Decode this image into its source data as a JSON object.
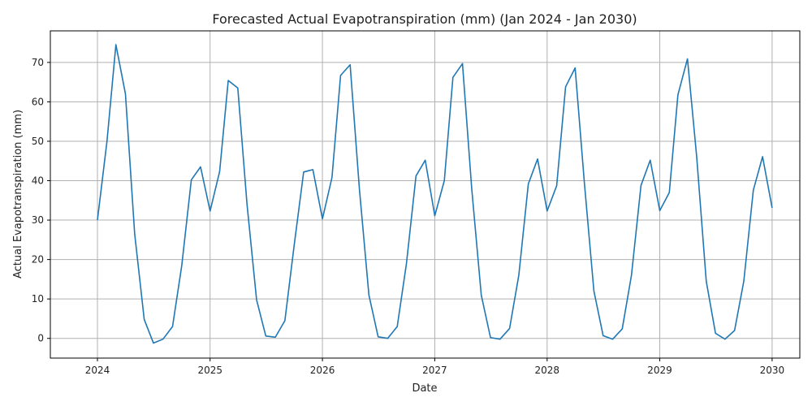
{
  "chart_data": {
    "type": "line",
    "title": "Forecasted Actual Evapotranspiration (mm) (Jan 2024 - Jan 2030)",
    "xlabel": "Date",
    "ylabel": "Actual Evapotranspiration (mm)",
    "xlim": [
      "2023-08-01",
      "2030-04-01"
    ],
    "ylim": [
      -5,
      78
    ],
    "x_ticks": [
      "2024",
      "2025",
      "2026",
      "2027",
      "2028",
      "2029",
      "2030"
    ],
    "y_ticks": [
      0,
      10,
      20,
      30,
      40,
      50,
      60,
      70
    ],
    "grid": true,
    "x": [
      "2024-01-01",
      "2024-02-01",
      "2024-03-01",
      "2024-04-01",
      "2024-05-01",
      "2024-06-01",
      "2024-07-01",
      "2024-08-01",
      "2024-09-01",
      "2024-10-01",
      "2024-11-01",
      "2024-12-01",
      "2025-01-01",
      "2025-02-01",
      "2025-03-01",
      "2025-04-01",
      "2025-05-01",
      "2025-06-01",
      "2025-07-01",
      "2025-08-01",
      "2025-09-01",
      "2025-10-01",
      "2025-11-01",
      "2025-12-01",
      "2026-01-01",
      "2026-02-01",
      "2026-03-01",
      "2026-04-01",
      "2026-05-01",
      "2026-06-01",
      "2026-07-01",
      "2026-08-01",
      "2026-09-01",
      "2026-10-01",
      "2026-11-01",
      "2026-12-01",
      "2027-01-01",
      "2027-02-01",
      "2027-03-01",
      "2027-04-01",
      "2027-05-01",
      "2027-06-01",
      "2027-07-01",
      "2027-08-01",
      "2027-09-01",
      "2027-10-01",
      "2027-11-01",
      "2027-12-01",
      "2028-01-01",
      "2028-02-01",
      "2028-03-01",
      "2028-04-01",
      "2028-05-01",
      "2028-06-01",
      "2028-07-01",
      "2028-08-01",
      "2028-09-01",
      "2028-10-01",
      "2028-11-01",
      "2028-12-01",
      "2029-01-01",
      "2029-02-01",
      "2029-03-01",
      "2029-04-01",
      "2029-05-01",
      "2029-06-01",
      "2029-07-01",
      "2029-08-01",
      "2029-09-01",
      "2029-10-01",
      "2029-11-01",
      "2029-12-01",
      "2030-01-01"
    ],
    "series": [
      {
        "values": [
          30.0,
          50.0,
          74.5,
          62.0,
          26.5,
          4.8,
          -1.2,
          -0.2,
          3.0,
          18.5,
          40.2,
          43.5,
          32.3,
          42.3,
          65.4,
          63.5,
          34.0,
          9.8,
          0.6,
          0.3,
          4.5,
          23.5,
          42.2,
          42.8,
          30.3,
          40.8,
          66.7,
          69.4,
          38.0,
          11.0,
          0.4,
          0.0,
          3.0,
          19.0,
          41.2,
          45.2,
          31.1,
          40.0,
          66.2,
          69.7,
          38.0,
          11.0,
          0.2,
          -0.2,
          2.5,
          16.0,
          39.2,
          45.5,
          32.3,
          38.7,
          63.8,
          68.6,
          39.5,
          12.0,
          0.7,
          -0.2,
          2.4,
          16.0,
          38.8,
          45.2,
          32.4,
          37.0,
          61.8,
          70.9,
          46.0,
          14.5,
          1.3,
          -0.2,
          2.0,
          14.5,
          37.6,
          46.1,
          33.1
        ],
        "color": "#1f77b4"
      }
    ]
  }
}
